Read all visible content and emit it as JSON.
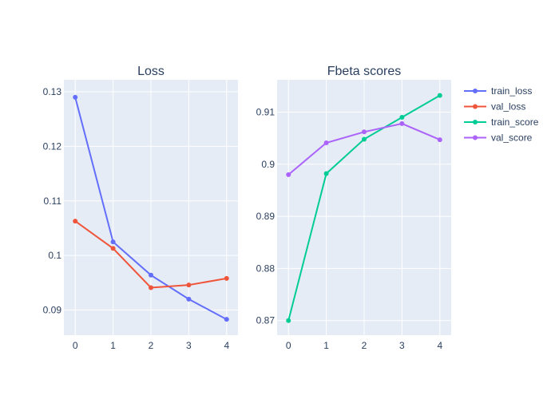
{
  "colors": {
    "plot_bg": "#E5ECF6",
    "grid": "#ffffff",
    "text": "#2a3f5f",
    "train_loss": "#636EFA",
    "val_loss": "#EF553B",
    "train_score": "#00CC96",
    "val_score": "#AB63FA"
  },
  "legend": {
    "placement": "right",
    "items": [
      {
        "name": "train_loss",
        "color": "#636EFA"
      },
      {
        "name": "val_loss",
        "color": "#EF553B"
      },
      {
        "name": "train_score",
        "color": "#00CC96"
      },
      {
        "name": "val_score",
        "color": "#AB63FA"
      }
    ]
  },
  "chart_data": [
    {
      "type": "line",
      "title": "Loss",
      "x": [
        0,
        1,
        2,
        3,
        4
      ],
      "xticks": [
        "0",
        "1",
        "2",
        "3",
        "4"
      ],
      "xlim": [
        -0.3,
        4.3
      ],
      "yticks": [
        0.09,
        0.1,
        0.11,
        0.12,
        0.13
      ],
      "ytick_labels": [
        "0.09",
        "0.1",
        "0.11",
        "0.12",
        "0.13"
      ],
      "ylim": [
        0.0854,
        0.1322
      ],
      "grid": true,
      "series": [
        {
          "name": "train_loss",
          "color": "#636EFA",
          "values": [
            0.129,
            0.1025,
            0.0964,
            0.092,
            0.0883
          ]
        },
        {
          "name": "val_loss",
          "color": "#EF553B",
          "values": [
            0.1063,
            0.1013,
            0.0941,
            0.0946,
            0.0958
          ]
        }
      ]
    },
    {
      "type": "line",
      "title": "Fbeta scores",
      "x": [
        0,
        1,
        2,
        3,
        4
      ],
      "xticks": [
        "0",
        "1",
        "2",
        "3",
        "4"
      ],
      "xlim": [
        -0.3,
        4.3
      ],
      "yticks": [
        0.87,
        0.88,
        0.89,
        0.9,
        0.91
      ],
      "ytick_labels": [
        "0.87",
        "0.88",
        "0.89",
        "0.9",
        "0.91"
      ],
      "ylim": [
        0.8672,
        0.9162
      ],
      "grid": true,
      "series": [
        {
          "name": "train_score",
          "color": "#00CC96",
          "values": [
            0.87,
            0.8982,
            0.9048,
            0.909,
            0.9132
          ]
        },
        {
          "name": "val_score",
          "color": "#AB63FA",
          "values": [
            0.898,
            0.9041,
            0.9062,
            0.9078,
            0.9047
          ]
        }
      ]
    }
  ]
}
